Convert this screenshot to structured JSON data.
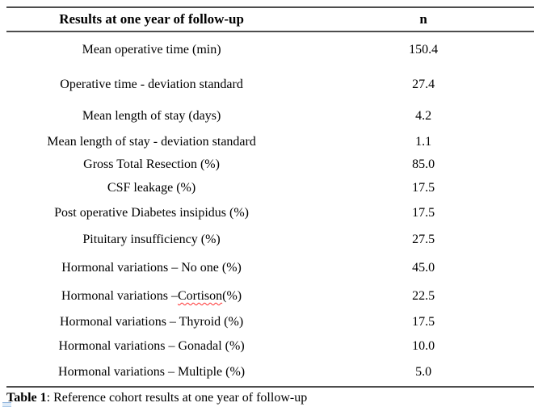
{
  "table": {
    "columns": [
      "Results at one year of follow-up",
      "n"
    ],
    "rows": [
      {
        "label": "Mean operative time (min)",
        "value": "150.4"
      },
      {
        "label": "Operative time - deviation standard",
        "value": "27.4"
      },
      {
        "label": "Mean length of stay (days)",
        "value": "4.2"
      },
      {
        "label": "Mean length of stay - deviation standard",
        "value": "1.1"
      },
      {
        "label": "Gross Total Resection (%)",
        "value": "85.0"
      },
      {
        "label": "CSF leakage (%)",
        "value": "17.5"
      },
      {
        "label": "Post operative Diabetes insipidus (%)",
        "value": "17.5"
      },
      {
        "label": "Pituitary insufficiency (%)",
        "value": "27.5"
      },
      {
        "label": "Hormonal variations – No one (%)",
        "value": "45.0"
      },
      {
        "label": "Hormonal variations – Cortison (%)",
        "value": "22.5"
      },
      {
        "label": "Hormonal variations – Thyroid (%)",
        "value": "17.5"
      },
      {
        "label": "Hormonal variations – Gonadal (%)",
        "value": "10.0"
      },
      {
        "label": "Hormonal variations – Multiple (%)",
        "value": "5.0"
      }
    ],
    "spellcheck_word": "Cortison"
  },
  "caption": {
    "label": "Table 1",
    "text": ": Reference cohort results at one year of follow-up"
  },
  "colors": {
    "rule_gray": "#4d4d4d",
    "text_black": "#000000",
    "spellcheck_red": "#ff2f2f",
    "artifact_blue": "#aac9e8"
  }
}
